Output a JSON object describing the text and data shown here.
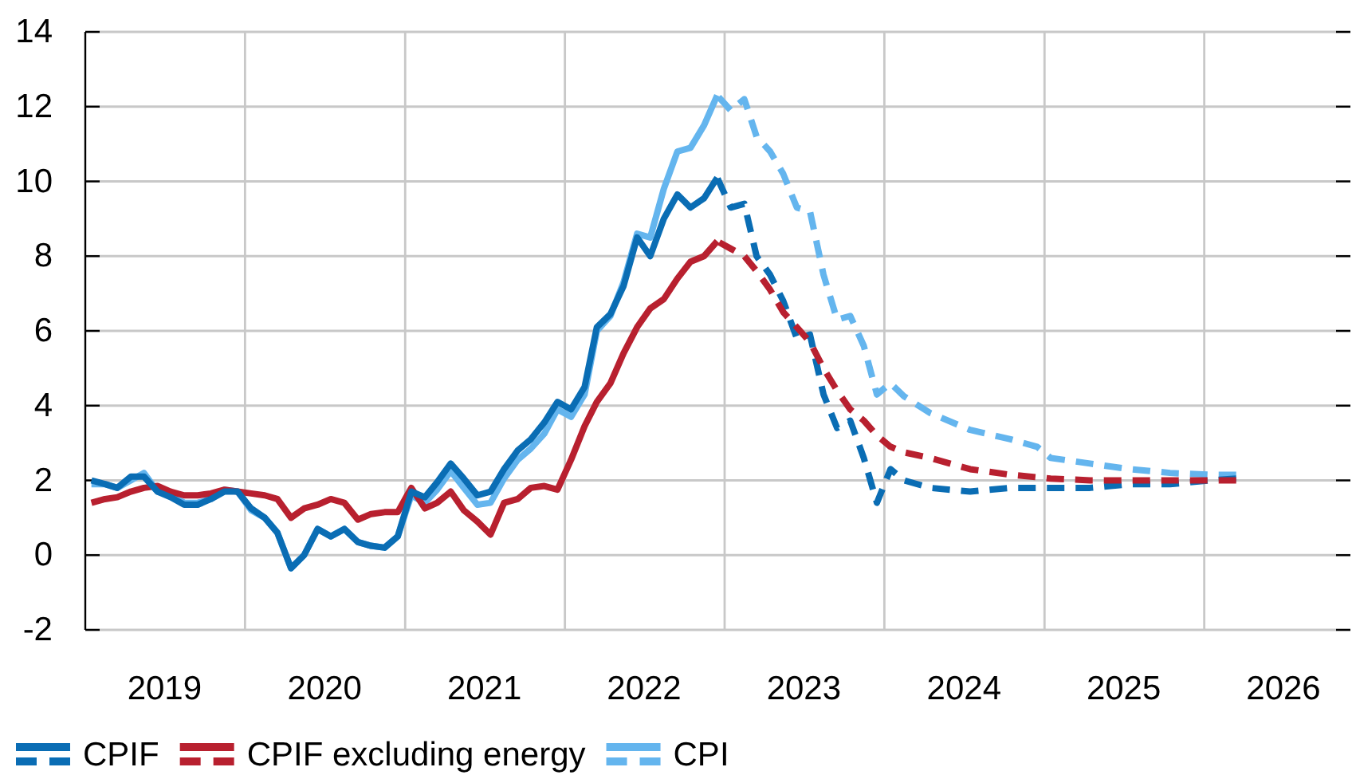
{
  "chart_data": {
    "type": "line",
    "xlim": [
      "2019-01",
      "2026-12"
    ],
    "xticks": [
      {
        "value": "2019-07",
        "label": "2019"
      },
      {
        "value": "2020-01",
        "label": null
      },
      {
        "value": "2020-07",
        "label": "2020"
      },
      {
        "value": "2021-01",
        "label": null
      },
      {
        "value": "2021-07",
        "label": "2021"
      },
      {
        "value": "2022-01",
        "label": null
      },
      {
        "value": "2022-07",
        "label": "2022"
      },
      {
        "value": "2023-01",
        "label": null
      },
      {
        "value": "2023-07",
        "label": "2023"
      },
      {
        "value": "2024-01",
        "label": null
      },
      {
        "value": "2024-07",
        "label": "2024"
      },
      {
        "value": "2025-01",
        "label": null
      },
      {
        "value": "2025-07",
        "label": "2025"
      },
      {
        "value": "2026-01",
        "label": null
      },
      {
        "value": "2026-07",
        "label": "2026"
      }
    ],
    "ylim": [
      -2,
      14
    ],
    "yticks": [
      -2,
      0,
      2,
      4,
      6,
      8,
      10,
      12,
      14
    ],
    "grid": true,
    "legend": "bottom",
    "series": [
      {
        "name": "CPIF",
        "color": "#0a6db4",
        "line_style": "solid",
        "x": [
          "2019-01-15",
          "2019-02-15",
          "2019-03-15",
          "2019-04-15",
          "2019-05-15",
          "2019-06-15",
          "2019-07-15",
          "2019-08-15",
          "2019-09-15",
          "2019-10-15",
          "2019-11-15",
          "2019-12-15",
          "2020-01-15",
          "2020-02-15",
          "2020-03-15",
          "2020-04-15",
          "2020-05-15",
          "2020-06-15",
          "2020-07-15",
          "2020-08-15",
          "2020-09-15",
          "2020-10-15",
          "2020-11-15",
          "2020-12-15",
          "2021-01-15",
          "2021-02-15",
          "2021-03-15",
          "2021-04-15",
          "2021-05-15",
          "2021-06-15",
          "2021-07-15",
          "2021-08-15",
          "2021-09-15",
          "2021-10-15",
          "2021-11-15",
          "2021-12-15",
          "2022-01-15",
          "2022-02-15",
          "2022-03-15",
          "2022-04-15",
          "2022-05-15",
          "2022-06-15",
          "2022-07-15",
          "2022-08-15",
          "2022-09-15",
          "2022-10-15",
          "2022-11-15",
          "2022-12-15"
        ],
        "values": [
          2.0,
          1.9,
          1.8,
          2.1,
          2.1,
          1.7,
          1.55,
          1.35,
          1.35,
          1.5,
          1.7,
          1.7,
          1.25,
          1.0,
          0.6,
          -0.35,
          0.0,
          0.7,
          0.5,
          0.7,
          0.35,
          0.25,
          0.2,
          0.5,
          1.7,
          1.55,
          1.95,
          2.45,
          2.05,
          1.6,
          1.7,
          2.3,
          2.8,
          3.1,
          3.55,
          4.1,
          3.9,
          4.5,
          6.1,
          6.45,
          7.2,
          8.5,
          8.0,
          9.0,
          9.65,
          9.3,
          9.55,
          10.1
        ]
      },
      {
        "color": "#b8202f",
        "line_style": "dashed",
        "x": [
          "2022-12-15",
          "2023-01-15",
          "2023-02-15",
          "2023-03-15",
          "2023-04-15",
          "2023-05-15",
          "2023-06-15",
          "2023-07-15",
          "2023-08-15",
          "2023-09-15",
          "2023-10-15",
          "2023-11-15",
          "2023-12-15",
          "2024-01-15",
          "2024-02-15",
          "2024-04-15",
          "2024-07-15",
          "2024-10-15",
          "2025-01-15",
          "2025-04-15",
          "2025-07-15",
          "2025-10-15",
          "2026-01-15",
          "2026-03-15"
        ],
        "values": [
          8.4,
          8.2,
          8.0,
          7.6,
          7.1,
          6.5,
          6.1,
          5.7,
          5.0,
          4.4,
          3.9,
          3.6,
          3.2,
          2.9,
          2.75,
          2.6,
          2.3,
          2.15,
          2.05,
          2.0,
          2.0,
          2.0,
          2.0,
          2.0
        ]
      },
      {
        "color": "#0a6db4",
        "line_style": "dashed",
        "x": [
          "2022-12-15",
          "2023-01-15",
          "2023-02-15",
          "2023-03-15",
          "2023-04-15",
          "2023-05-15",
          "2023-06-15",
          "2023-07-15",
          "2023-08-15",
          "2023-09-15",
          "2023-10-15",
          "2023-11-15",
          "2023-12-15",
          "2024-01-15",
          "2024-02-15",
          "2024-04-15",
          "2024-07-15",
          "2024-10-15",
          "2025-01-15",
          "2025-04-15",
          "2025-07-15",
          "2025-10-15",
          "2026-01-15",
          "2026-03-15"
        ],
        "values": [
          10.1,
          9.3,
          9.4,
          8.0,
          7.5,
          6.8,
          5.8,
          5.9,
          4.3,
          3.4,
          3.6,
          2.6,
          1.4,
          2.3,
          2.0,
          1.8,
          1.7,
          1.8,
          1.8,
          1.8,
          1.9,
          1.9,
          2.0,
          2.05
        ]
      },
      {
        "name": "CPIF excluding energy",
        "color": "#b8202f",
        "line_style": "solid",
        "x": [
          "2019-01-15",
          "2019-02-15",
          "2019-03-15",
          "2019-04-15",
          "2019-05-15",
          "2019-06-15",
          "2019-07-15",
          "2019-08-15",
          "2019-09-15",
          "2019-10-15",
          "2019-11-15",
          "2019-12-15",
          "2020-01-15",
          "2020-02-15",
          "2020-03-15",
          "2020-04-15",
          "2020-05-15",
          "2020-06-15",
          "2020-07-15",
          "2020-08-15",
          "2020-09-15",
          "2020-10-15",
          "2020-11-15",
          "2020-12-15",
          "2021-01-15",
          "2021-02-15",
          "2021-03-15",
          "2021-04-15",
          "2021-05-15",
          "2021-06-15",
          "2021-07-15",
          "2021-08-15",
          "2021-09-15",
          "2021-10-15",
          "2021-11-15",
          "2021-12-15",
          "2022-01-15",
          "2022-02-15",
          "2022-03-15",
          "2022-04-15",
          "2022-05-15",
          "2022-06-15",
          "2022-07-15",
          "2022-08-15",
          "2022-09-15",
          "2022-10-15",
          "2022-11-15",
          "2022-12-15"
        ],
        "values": [
          1.4,
          1.5,
          1.55,
          1.7,
          1.8,
          1.85,
          1.7,
          1.6,
          1.6,
          1.65,
          1.75,
          1.7,
          1.65,
          1.6,
          1.5,
          1.0,
          1.25,
          1.35,
          1.5,
          1.4,
          0.95,
          1.1,
          1.15,
          1.15,
          1.8,
          1.25,
          1.4,
          1.7,
          1.2,
          0.9,
          0.55,
          1.4,
          1.5,
          1.8,
          1.85,
          1.75,
          2.55,
          3.45,
          4.1,
          4.6,
          5.4,
          6.1,
          6.6,
          6.85,
          7.4,
          7.85,
          8.0,
          8.4
        ]
      },
      {
        "name": "CPI",
        "color": "#64b5ee",
        "line_style": "solid",
        "x": [
          "2019-01-15",
          "2019-02-15",
          "2019-03-15",
          "2019-04-15",
          "2019-05-15",
          "2019-06-15",
          "2019-07-15",
          "2019-08-15",
          "2019-09-15",
          "2019-10-15",
          "2019-11-15",
          "2019-12-15",
          "2020-01-15",
          "2020-02-15",
          "2020-03-15",
          "2020-04-15",
          "2020-05-15",
          "2020-06-15",
          "2020-07-15",
          "2020-08-15",
          "2020-09-15",
          "2020-10-15",
          "2020-11-15",
          "2020-12-15",
          "2021-01-15",
          "2021-02-15",
          "2021-03-15",
          "2021-04-15",
          "2021-05-15",
          "2021-06-15",
          "2021-07-15",
          "2021-08-15",
          "2021-09-15",
          "2021-10-15",
          "2021-11-15",
          "2021-12-15",
          "2022-01-15",
          "2022-02-15",
          "2022-03-15",
          "2022-04-15",
          "2022-05-15",
          "2022-06-15",
          "2022-07-15",
          "2022-08-15",
          "2022-09-15",
          "2022-10-15",
          "2022-11-15",
          "2022-12-15"
        ],
        "values": [
          1.9,
          1.9,
          1.8,
          2.0,
          2.2,
          1.7,
          1.6,
          1.4,
          1.4,
          1.5,
          1.75,
          1.7,
          1.2,
          1.0,
          0.6,
          -0.35,
          0.0,
          0.7,
          0.5,
          0.7,
          0.35,
          0.25,
          0.2,
          0.5,
          1.6,
          1.4,
          1.75,
          2.25,
          1.8,
          1.35,
          1.4,
          2.05,
          2.55,
          2.85,
          3.25,
          3.9,
          3.7,
          4.3,
          6.0,
          6.4,
          7.3,
          8.6,
          8.5,
          9.8,
          10.8,
          10.9,
          11.5,
          12.3
        ]
      },
      {
        "color": "#64b5ee",
        "line_style": "dashed",
        "x": [
          "2022-12-15",
          "2023-01-15",
          "2023-02-15",
          "2023-03-15",
          "2023-04-15",
          "2023-05-15",
          "2023-06-15",
          "2023-07-15",
          "2023-08-15",
          "2023-09-15",
          "2023-10-15",
          "2023-11-15",
          "2023-12-15",
          "2024-01-15",
          "2024-02-15",
          "2024-04-15",
          "2024-07-15",
          "2024-10-15",
          "2024-12-15",
          "2025-01-15",
          "2025-04-15",
          "2025-07-15",
          "2025-10-15",
          "2026-01-15",
          "2026-03-15"
        ],
        "values": [
          12.3,
          11.9,
          12.2,
          11.2,
          10.8,
          10.2,
          9.3,
          9.2,
          7.5,
          6.3,
          6.4,
          5.6,
          4.3,
          4.6,
          4.25,
          3.8,
          3.35,
          3.1,
          2.9,
          2.6,
          2.45,
          2.3,
          2.2,
          2.15,
          2.15
        ]
      }
    ]
  }
}
